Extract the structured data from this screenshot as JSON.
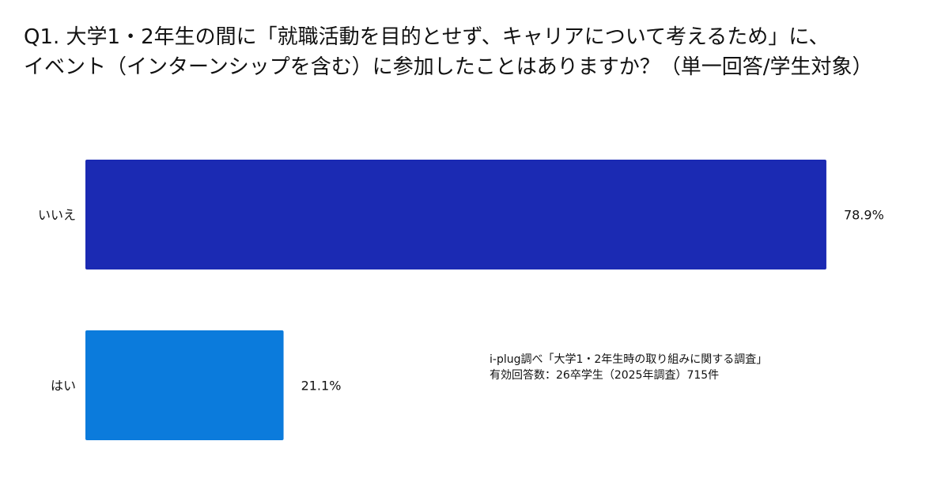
{
  "title_lines": [
    "Q1. 大学1・2年生の間に「就職活動を目的とせず、キャリアについて考えるため」に、",
    "イベント（インターンシップを含む）に参加したことはありますか？（単一回答/学生対象）"
  ],
  "note_lines": [
    "i-plug調べ「大学1・2年生時の取り組みに関する調査」",
    "有効回答数：26卒学生（2025年調査）715件"
  ],
  "chart_data": {
    "type": "bar",
    "orientation": "horizontal",
    "categories": [
      "いいえ",
      "はい"
    ],
    "series": [
      {
        "values": [
          78.9,
          21.1
        ],
        "colors": [
          "#1b2ab3",
          "#0b7bdc"
        ]
      }
    ],
    "value_labels": [
      "78.9%",
      "21.1%"
    ],
    "unit": "%",
    "xlim": [
      0,
      88
    ],
    "grid": false,
    "legend": "none"
  }
}
